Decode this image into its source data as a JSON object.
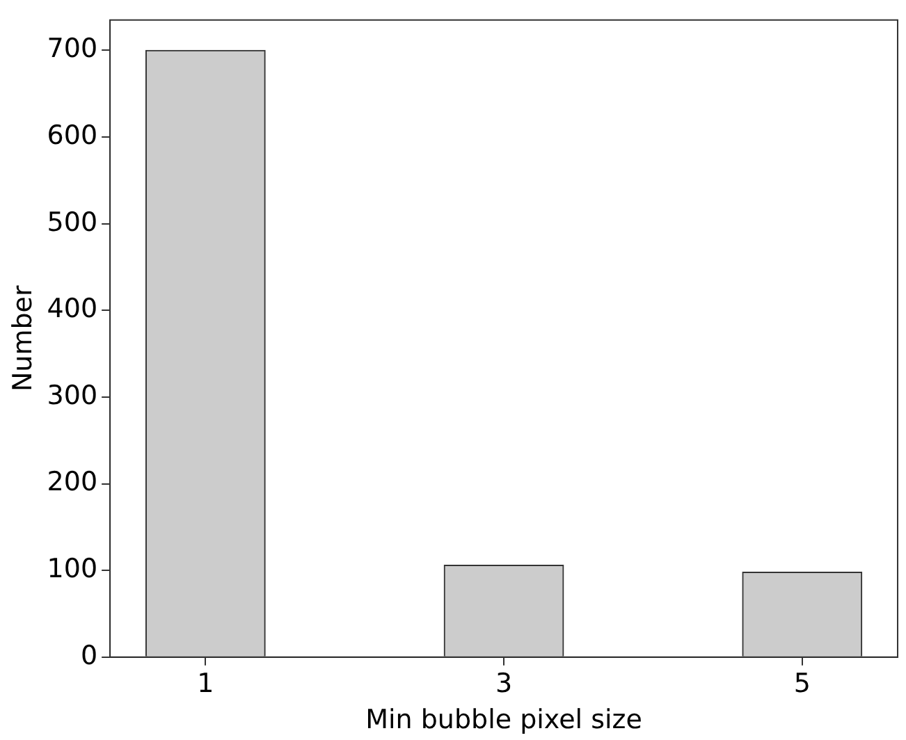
{
  "chart_data": {
    "type": "bar",
    "xlabel": "Min bubble pixel size",
    "ylabel": "Number",
    "x": [
      1,
      3,
      5
    ],
    "values": [
      700,
      106,
      98
    ],
    "color": "#cccccc",
    "xlim": [
      0.36,
      5.64
    ],
    "xticks": [
      1,
      3,
      5
    ],
    "ylim": [
      0,
      735
    ],
    "yticks": [
      0,
      100,
      200,
      300,
      400,
      500,
      600,
      700
    ],
    "grid": false,
    "legend": false
  }
}
